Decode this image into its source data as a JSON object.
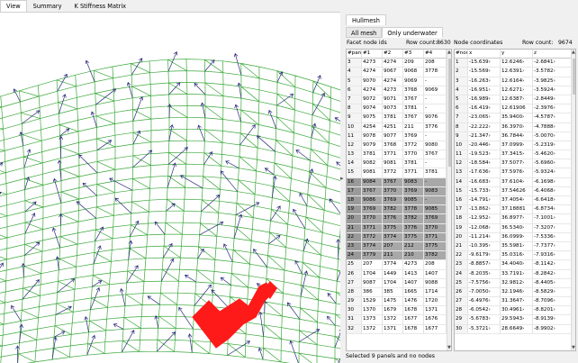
{
  "top_tabs": [
    "View",
    "Summary",
    "K Stiffness Matrix"
  ],
  "panel_tab": "Hullmesh",
  "inner_tabs": [
    "All mesh",
    "Only underwater"
  ],
  "facet": {
    "title": "Facet node ids",
    "count_label": "Row count:",
    "count": "8630",
    "headers": [
      "#pane",
      "#1",
      "#2",
      "#3",
      "#4"
    ],
    "rows": [
      [
        "3",
        "4273",
        "4274",
        "209",
        "208"
      ],
      [
        "4",
        "4274",
        "9067",
        "9068",
        "3778"
      ],
      [
        "5",
        "9070",
        "4274",
        "9069",
        "-"
      ],
      [
        "6",
        "4274",
        "4273",
        "3768",
        "9069"
      ],
      [
        "7",
        "9072",
        "9071",
        "3767",
        "-"
      ],
      [
        "8",
        "9074",
        "9073",
        "3781",
        "-"
      ],
      [
        "9",
        "9075",
        "3781",
        "3767",
        "9076"
      ],
      [
        "10",
        "4254",
        "4251",
        "211",
        "3776"
      ],
      [
        "11",
        "9078",
        "9077",
        "3769",
        "-"
      ],
      [
        "12",
        "9079",
        "3768",
        "3772",
        "9080"
      ],
      [
        "13",
        "3781",
        "3771",
        "3770",
        "3767"
      ],
      [
        "14",
        "9082",
        "9081",
        "3781",
        "-"
      ],
      [
        "15",
        "9081",
        "3772",
        "3771",
        "3781"
      ],
      [
        "16",
        "9084",
        "3767",
        "9083",
        "-"
      ],
      [
        "17",
        "3767",
        "3770",
        "3769",
        "9083"
      ],
      [
        "18",
        "9086",
        "3769",
        "9085",
        "-"
      ],
      [
        "19",
        "3769",
        "3782",
        "3778",
        "9085"
      ],
      [
        "20",
        "3770",
        "3776",
        "3782",
        "3769"
      ],
      [
        "21",
        "3771",
        "3775",
        "3776",
        "3770"
      ],
      [
        "22",
        "3772",
        "3774",
        "3775",
        "3771"
      ],
      [
        "23",
        "3774",
        "207",
        "212",
        "3775"
      ],
      [
        "24",
        "3779",
        "211",
        "210",
        "3782"
      ],
      [
        "25",
        "207",
        "3774",
        "4273",
        "208"
      ],
      [
        "26",
        "1704",
        "1449",
        "1413",
        "1407"
      ],
      [
        "27",
        "9087",
        "1704",
        "1407",
        "9088"
      ],
      [
        "28",
        "386",
        "385",
        "1665",
        "1714"
      ],
      [
        "29",
        "1529",
        "1475",
        "1476",
        "1720"
      ],
      [
        "30",
        "1370",
        "1679",
        "1678",
        "1371"
      ],
      [
        "31",
        "1373",
        "1372",
        "1677",
        "1676"
      ],
      [
        "32",
        "1372",
        "1371",
        "1678",
        "1677"
      ]
    ],
    "selected_rows": [
      13,
      14,
      15,
      16,
      17,
      18,
      19,
      20,
      21
    ]
  },
  "nodes": {
    "title": "Node coordinates",
    "count_label": "Row count:",
    "count": "9674",
    "headers": [
      "#node",
      "x",
      "y",
      "z"
    ],
    "rows": [
      [
        "1",
        "-15.639›",
        "12.6246›",
        "-2.6841›"
      ],
      [
        "2",
        "-15.569›",
        "12.6391›",
        "-3.5782›"
      ],
      [
        "3",
        "-16.263›",
        "12.6164›",
        "-3.9825›"
      ],
      [
        "4",
        "-16.951›",
        "12.6271›",
        "-3.5924›"
      ],
      [
        "5",
        "-16.989›",
        "12.6387›",
        "-2.8449›"
      ],
      [
        "6",
        "-16.419›",
        "12.61906",
        "-2.3976›"
      ],
      [
        "7",
        "-23.065›",
        "35.9400›",
        "-4.5787›"
      ],
      [
        "8",
        "-22.222›",
        "36.3970›",
        "-4.7888›"
      ],
      [
        "9",
        "-21.347›",
        "36.7844›",
        "-5.0070›"
      ],
      [
        "10",
        "-20.446›",
        "37.0999›",
        "-5.2319›"
      ],
      [
        "11",
        "-19.523›",
        "37.3415›",
        "-5.4620›"
      ],
      [
        "12",
        "-18.584›",
        "37.5077›",
        "-5.6960›"
      ],
      [
        "13",
        "-17.636›",
        "37.5976›",
        "-5.9324›"
      ],
      [
        "14",
        "-16.683›",
        "37.6104›",
        "-6.1698›"
      ],
      [
        "15",
        "-15.733›",
        "37.54626",
        "-6.4068›"
      ],
      [
        "16",
        "-14.791›",
        "37.4054›",
        "-6.6418›"
      ],
      [
        "17",
        "-13.862›",
        "37.18881",
        "-6.8734›"
      ],
      [
        "18",
        "-12.952›",
        "36.8977›",
        "-7.1001›"
      ],
      [
        "19",
        "-12.068›",
        "36.5340›",
        "-7.3207›"
      ],
      [
        "20",
        "-11.214›",
        "36.0999›",
        "-7.5336›"
      ],
      [
        "21",
        "-10.395›",
        "35.5981›",
        "-7.7377›"
      ],
      [
        "22",
        "-9.6179›",
        "35.0316›",
        "-7.9316›"
      ],
      [
        "23",
        "-8.8857›",
        "34.4040›",
        "-8.1142›"
      ],
      [
        "24",
        "-8.2035›",
        "33.7191›",
        "-8.2842›"
      ],
      [
        "25",
        "-7.5756›",
        "32.9812›",
        "-8.4405›"
      ],
      [
        "26",
        "-7.0050›",
        "32.1946›",
        "-8.5829›"
      ],
      [
        "27",
        "-6.4976›",
        "31.3647›",
        "-8.7096›"
      ],
      [
        "28",
        "-6.0542›",
        "30.4961›",
        "-8.8201›"
      ],
      [
        "29",
        "-5.6783›",
        "29.5943›",
        "-8.9139›"
      ],
      [
        "30",
        "-5.3721›",
        "28.6649›",
        "-8.9902›"
      ]
    ]
  },
  "status": "Selected 9 panels and no nodes",
  "colors": {
    "mesh": "#3aa83a",
    "arrows": "#2a2a7a",
    "selection": "#ff1a1a"
  }
}
